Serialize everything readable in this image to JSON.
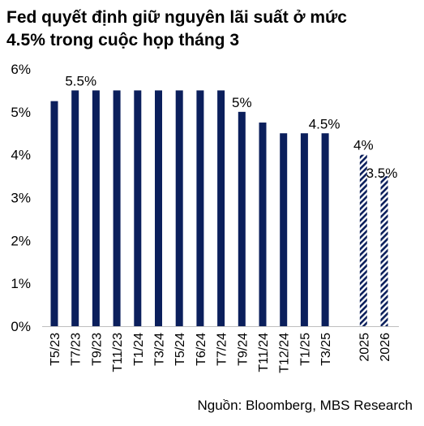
{
  "title": {
    "line1": "Fed quyết định giữ nguyên lãi suất ở mức",
    "line2": "4.5% trong cuộc họp tháng 3"
  },
  "source": "Nguồn: Bloomberg, MBS Research",
  "colors": {
    "bar": "#0b1f5c",
    "forecast": "#0b1f5c",
    "text": "#000000"
  },
  "chart_data": {
    "type": "bar",
    "ylim": [
      0,
      6
    ],
    "yticks": [
      "0%",
      "1%",
      "2%",
      "3%",
      "4%",
      "5%",
      "6%"
    ],
    "grid": false,
    "categories": [
      "T5/23",
      "T7/23",
      "T9/23",
      "T11/23",
      "T1/24",
      "T3/24",
      "T5/24",
      "T6/24",
      "T7/24",
      "T9/24",
      "T11/24",
      "T12/24",
      "T1/25",
      "T3/25",
      "2025",
      "2026"
    ],
    "values": [
      5.25,
      5.5,
      5.5,
      5.5,
      5.5,
      5.5,
      5.5,
      5.5,
      5.5,
      5.0,
      4.75,
      4.5,
      4.5,
      4.5,
      4.0,
      3.5
    ],
    "forecast": [
      false,
      false,
      false,
      false,
      false,
      false,
      false,
      false,
      false,
      false,
      false,
      false,
      false,
      false,
      true,
      true
    ],
    "data_labels": [
      {
        "index": 1,
        "text": "5.5%"
      },
      {
        "index": 9,
        "text": "5%"
      },
      {
        "index": 13,
        "text": "4.5%"
      },
      {
        "index": 14,
        "text": "4%"
      },
      {
        "index": 15,
        "text": "3.5%"
      }
    ]
  }
}
